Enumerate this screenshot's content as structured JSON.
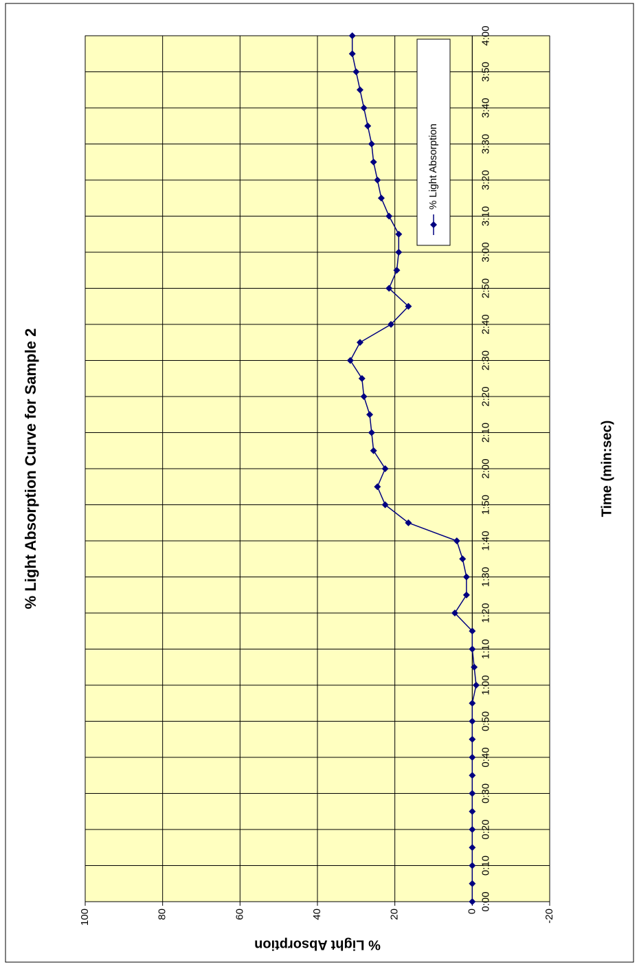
{
  "chart_data": {
    "type": "line",
    "title": "% Light Absorption Curve for Sample 2",
    "x_label": "Time (min:sec)",
    "y_label": "% Light Absorption",
    "x": [
      0,
      5,
      10,
      15,
      20,
      25,
      30,
      35,
      40,
      45,
      50,
      55,
      60,
      65,
      70,
      75,
      80,
      85,
      90,
      95,
      100,
      105,
      110,
      115,
      120,
      125,
      130,
      135,
      140,
      145,
      150,
      155,
      160,
      165,
      170,
      175,
      180,
      185,
      190,
      195,
      200,
      205,
      210,
      215,
      220,
      225,
      230,
      235,
      240
    ],
    "series": [
      {
        "name": "% Light Absorption",
        "color": "#000080",
        "values": [
          0,
          0,
          0,
          0,
          0,
          0,
          0,
          0,
          0,
          0,
          0,
          0,
          -1,
          -0.5,
          0,
          0,
          4.5,
          1.5,
          1.5,
          2.5,
          4,
          16.5,
          22.5,
          24.5,
          22.5,
          25.5,
          26,
          26.5,
          28,
          28.5,
          31.5,
          29,
          21,
          16.5,
          21.5,
          19.5,
          19,
          19,
          21.5,
          23.5,
          24.5,
          25.5,
          26,
          27,
          28,
          29,
          30,
          31,
          31
        ]
      }
    ],
    "xlim": [
      0,
      240
    ],
    "xticks": [
      {
        "value": 0,
        "label": "0:00"
      },
      {
        "value": 10,
        "label": "0:10"
      },
      {
        "value": 20,
        "label": "0:20"
      },
      {
        "value": 30,
        "label": "0:30"
      },
      {
        "value": 40,
        "label": "0:40"
      },
      {
        "value": 50,
        "label": "0:50"
      },
      {
        "value": 60,
        "label": "1:00"
      },
      {
        "value": 70,
        "label": "1:10"
      },
      {
        "value": 80,
        "label": "1:20"
      },
      {
        "value": 90,
        "label": "1:30"
      },
      {
        "value": 100,
        "label": "1:40"
      },
      {
        "value": 110,
        "label": "1:50"
      },
      {
        "value": 120,
        "label": "2:00"
      },
      {
        "value": 130,
        "label": "2:10"
      },
      {
        "value": 140,
        "label": "2:20"
      },
      {
        "value": 150,
        "label": "2:30"
      },
      {
        "value": 160,
        "label": "2:40"
      },
      {
        "value": 170,
        "label": "2:50"
      },
      {
        "value": 180,
        "label": "3:00"
      },
      {
        "value": 190,
        "label": "3:10"
      },
      {
        "value": 200,
        "label": "3:20"
      },
      {
        "value": 210,
        "label": "3:30"
      },
      {
        "value": 220,
        "label": "3:40"
      },
      {
        "value": 230,
        "label": "3:50"
      },
      {
        "value": 240,
        "label": "4:00"
      }
    ],
    "ylim": [
      -20,
      100
    ],
    "yticks": [
      -20,
      0,
      20,
      40,
      60,
      80,
      100
    ],
    "grid": true,
    "background": "#ffffc0",
    "legend": "upper right"
  }
}
